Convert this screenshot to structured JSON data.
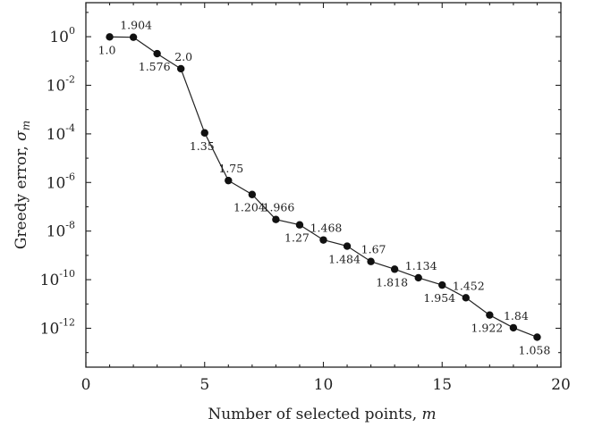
{
  "chart_data": {
    "type": "line",
    "xlabel": "Number of selected points,",
    "xlabel_var": "m",
    "ylabel": "Greedy error,",
    "ylabel_var": "σ",
    "ylabel_sub": "m",
    "xlim": [
      0,
      20
    ],
    "ylim_log10": [
      -13.6,
      1.4
    ],
    "y_scale": "log",
    "grid": false,
    "x_ticks": [
      0,
      5,
      10,
      15,
      20
    ],
    "y_ticks": [
      {
        "base": "10",
        "exp": "0",
        "log10": 0
      },
      {
        "base": "10",
        "exp": "-2",
        "log10": -2
      },
      {
        "base": "10",
        "exp": "-4",
        "log10": -4
      },
      {
        "base": "10",
        "exp": "-6",
        "log10": -6
      },
      {
        "base": "10",
        "exp": "-8",
        "log10": -8
      },
      {
        "base": "10",
        "exp": "-10",
        "log10": -10
      },
      {
        "base": "10",
        "exp": "-12",
        "log10": -12
      }
    ],
    "points": [
      {
        "x": 1,
        "y": 0.98,
        "label": "1.0",
        "label_pos": "below"
      },
      {
        "x": 2,
        "y": 0.95,
        "label": "1.904",
        "label_pos": "above"
      },
      {
        "x": 3,
        "y": 0.2,
        "label": "1.576",
        "label_pos": "below"
      },
      {
        "x": 4,
        "y": 0.048,
        "label": "2.0",
        "label_pos": "above"
      },
      {
        "x": 5,
        "y": 0.00011,
        "label": "1.35",
        "label_pos": "below"
      },
      {
        "x": 6,
        "y": 1.2e-06,
        "label": "1.75",
        "label_pos": "above"
      },
      {
        "x": 7,
        "y": 3.2e-07,
        "label": "1.204",
        "label_pos": "below"
      },
      {
        "x": 8,
        "y": 3e-08,
        "label": "1.966",
        "label_pos": "above"
      },
      {
        "x": 9,
        "y": 1.8e-08,
        "label": "1.27",
        "label_pos": "below"
      },
      {
        "x": 10,
        "y": 4.3e-09,
        "label": "1.468",
        "label_pos": "above"
      },
      {
        "x": 11,
        "y": 2.4e-09,
        "label": "1.484",
        "label_pos": "below"
      },
      {
        "x": 12,
        "y": 5.6e-10,
        "label": "1.67",
        "label_pos": "above"
      },
      {
        "x": 13,
        "y": 2.7e-10,
        "label": "1.818",
        "label_pos": "below"
      },
      {
        "x": 14,
        "y": 1.2e-10,
        "label": "1.134",
        "label_pos": "above"
      },
      {
        "x": 15,
        "y": 6e-11,
        "label": "1.954",
        "label_pos": "below"
      },
      {
        "x": 16,
        "y": 1.8e-11,
        "label": "1.452",
        "label_pos": "above"
      },
      {
        "x": 17,
        "y": 3.5e-12,
        "label": "1.922",
        "label_pos": "below"
      },
      {
        "x": 18,
        "y": 1.05e-12,
        "label": "1.84",
        "label_pos": "above"
      },
      {
        "x": 19,
        "y": 4.3e-13,
        "label": "1.058",
        "label_pos": "below"
      }
    ]
  }
}
